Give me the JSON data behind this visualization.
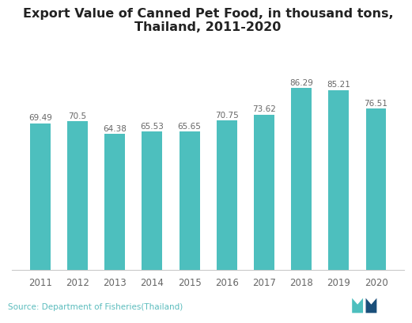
{
  "title": "Export Value of Canned Pet Food, in thousand tons,\nThailand, 2011-2020",
  "categories": [
    "2011",
    "2012",
    "2013",
    "2014",
    "2015",
    "2016",
    "2017",
    "2018",
    "2019",
    "2020"
  ],
  "values": [
    69.49,
    70.5,
    64.38,
    65.53,
    65.65,
    70.75,
    73.62,
    86.29,
    85.21,
    76.51
  ],
  "bar_color": "#4dbfbe",
  "label_color": "#666666",
  "background_color": "#ffffff",
  "source_text": "Source: Department of Fisheries(Thailand)",
  "source_color": "#5bbcbd",
  "title_fontsize": 11.5,
  "label_fontsize": 7.5,
  "tick_fontsize": 8.5,
  "source_fontsize": 7.5,
  "ylim": [
    0,
    105
  ],
  "bar_width": 0.55
}
